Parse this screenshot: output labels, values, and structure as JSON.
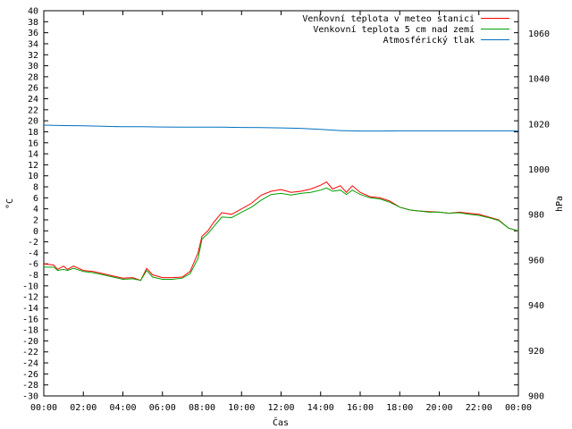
{
  "chart_data": {
    "type": "line",
    "xlabel": "Čas",
    "ylabel": "°C",
    "y2label": "hPa",
    "x_ticks": [
      "00:00",
      "02:00",
      "04:00",
      "06:00",
      "08:00",
      "10:00",
      "12:00",
      "14:00",
      "16:00",
      "18:00",
      "20:00",
      "22:00",
      "00:00"
    ],
    "xlim_hours": [
      0,
      24
    ],
    "ylim": [
      -30,
      40
    ],
    "y_ticks": [
      -30,
      -28,
      -26,
      -24,
      -22,
      -20,
      -18,
      -16,
      -14,
      -12,
      -10,
      -8,
      -6,
      -4,
      -2,
      0,
      2,
      4,
      6,
      8,
      10,
      12,
      14,
      16,
      18,
      20,
      22,
      24,
      26,
      28,
      30,
      32,
      34,
      36,
      38,
      40
    ],
    "y2lim": [
      900,
      1070
    ],
    "y2_ticks": [
      900,
      920,
      940,
      960,
      980,
      1000,
      1020,
      1040,
      1060
    ],
    "grid": false,
    "legend_position": "top-right",
    "series": [
      {
        "name": "Venkovní teplota v meteo stanici",
        "color": "#ff0000",
        "axis": "y",
        "x": [
          0,
          0.5,
          0.7,
          1,
          1.2,
          1.5,
          2,
          2.5,
          3,
          3.5,
          4,
          4.5,
          4.9,
          5.2,
          5.5,
          6,
          6.5,
          7,
          7.4,
          7.8,
          8,
          8.3,
          8.6,
          9,
          9.5,
          10,
          10.5,
          11,
          11.5,
          12,
          12.5,
          13,
          13.5,
          14,
          14.3,
          14.6,
          15,
          15.3,
          15.6,
          16,
          16.5,
          17,
          17.5,
          18,
          18.5,
          19,
          19.5,
          20,
          20.5,
          21,
          21.5,
          22,
          22.5,
          23,
          23.5,
          24
        ],
        "values": [
          -6,
          -6.2,
          -7,
          -6.4,
          -7,
          -6.4,
          -7.2,
          -7.4,
          -7.8,
          -8.2,
          -8.6,
          -8.5,
          -9,
          -6.8,
          -8,
          -8.5,
          -8.5,
          -8.4,
          -7.4,
          -4,
          -1,
          0,
          1.6,
          3.3,
          3,
          4,
          5,
          6.5,
          7.2,
          7.5,
          7.0,
          7.2,
          7.6,
          8.3,
          8.9,
          7.6,
          8.2,
          7.0,
          8.2,
          7.0,
          6.2,
          6.0,
          5.4,
          4.3,
          3.8,
          3.6,
          3.5,
          3.4,
          3.2,
          3.4,
          3.2,
          3.0,
          2.5,
          2.0,
          0.5,
          0.0
        ]
      },
      {
        "name": "Venkovní teplota 5 cm nad zemí",
        "color": "#00a000",
        "axis": "y",
        "x": [
          0,
          0.5,
          0.7,
          1,
          1.2,
          1.5,
          2,
          2.5,
          3,
          3.5,
          4,
          4.5,
          4.9,
          5.2,
          5.5,
          6,
          6.5,
          7,
          7.4,
          7.8,
          8,
          8.3,
          8.6,
          9,
          9.5,
          10,
          10.5,
          11,
          11.5,
          12,
          12.5,
          13,
          13.5,
          14,
          14.3,
          14.6,
          15,
          15.3,
          15.6,
          16,
          16.5,
          17,
          17.5,
          18,
          18.5,
          19,
          19.5,
          20,
          20.5,
          21,
          21.5,
          22,
          22.5,
          23,
          23.5,
          24
        ],
        "values": [
          -6.6,
          -6.6,
          -7.2,
          -7,
          -7.2,
          -6.8,
          -7.4,
          -7.6,
          -8,
          -8.4,
          -8.8,
          -8.7,
          -9,
          -7.2,
          -8.4,
          -8.8,
          -8.8,
          -8.6,
          -7.8,
          -5,
          -1.5,
          -0.5,
          0.8,
          2.5,
          2.4,
          3.4,
          4.3,
          5.6,
          6.6,
          6.8,
          6.5,
          6.8,
          7.0,
          7.4,
          7.8,
          7.2,
          7.4,
          6.6,
          7.4,
          6.6,
          6.0,
          5.8,
          5.2,
          4.3,
          3.8,
          3.6,
          3.4,
          3.4,
          3.2,
          3.3,
          3.0,
          2.8,
          2.4,
          1.9,
          0.5,
          0.0
        ]
      },
      {
        "name": "Atmosférický tlak",
        "color": "#0070c0",
        "axis": "y2",
        "x": [
          0,
          1,
          2,
          3,
          4,
          5,
          6,
          7,
          8,
          9,
          10,
          11,
          12,
          13,
          14,
          15,
          16,
          17,
          18,
          19,
          20,
          21,
          22,
          23,
          24
        ],
        "values": [
          1019.5,
          1019.3,
          1019.2,
          1019,
          1018.8,
          1018.8,
          1018.7,
          1018.6,
          1018.6,
          1018.6,
          1018.5,
          1018.4,
          1018.3,
          1018.1,
          1017.6,
          1017.1,
          1016.9,
          1016.9,
          1017,
          1017,
          1017,
          1017,
          1017,
          1017,
          1017
        ]
      }
    ]
  }
}
